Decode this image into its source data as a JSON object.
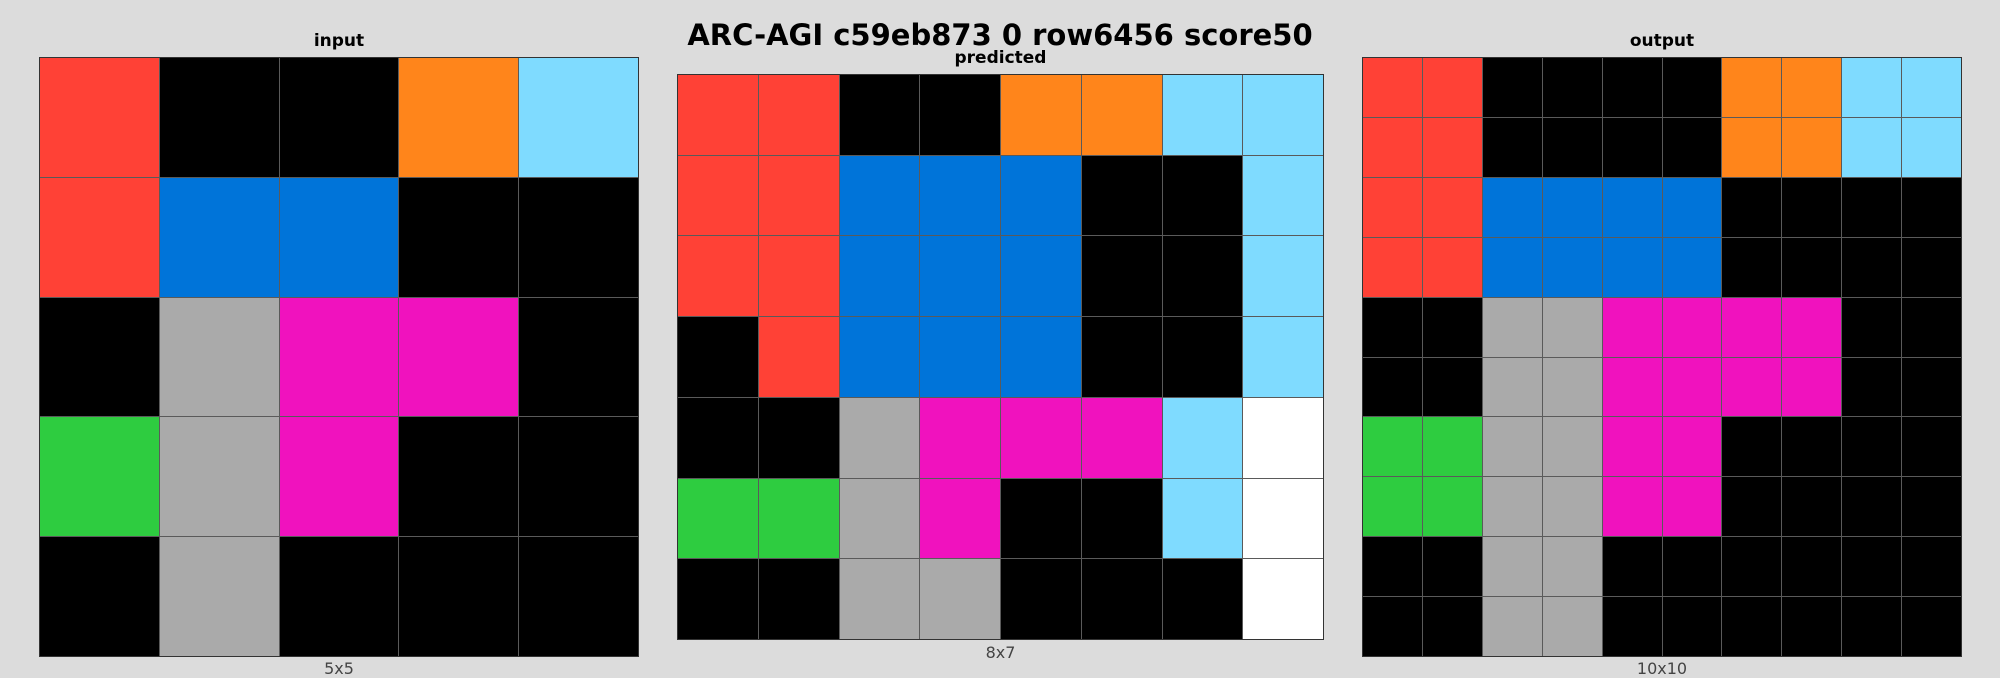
{
  "title": "ARC-AGI c59eb873 0 row6456 score50",
  "palette": {
    "0": "#000000",
    "1": "#0074D9",
    "2": "#FF4136",
    "3": "#2ECC40",
    "4": "#FFDC00",
    "5": "#AAAAAA",
    "6": "#F012BE",
    "7": "#FF851B",
    "8": "#7FDBFF",
    "9": "#FFFFFF"
  },
  "panels": {
    "input": {
      "label": "input",
      "size": "5x5",
      "grid": [
        [
          2,
          0,
          0,
          7,
          8
        ],
        [
          2,
          1,
          1,
          0,
          0
        ],
        [
          0,
          5,
          6,
          6,
          0
        ],
        [
          3,
          5,
          6,
          0,
          0
        ],
        [
          0,
          5,
          0,
          0,
          0
        ]
      ]
    },
    "predicted": {
      "label": "predicted",
      "size": "8x7",
      "grid": [
        [
          2,
          2,
          0,
          0,
          7,
          7,
          8,
          8
        ],
        [
          2,
          2,
          1,
          1,
          1,
          0,
          0,
          8
        ],
        [
          2,
          2,
          1,
          1,
          1,
          0,
          0,
          8
        ],
        [
          0,
          2,
          1,
          1,
          1,
          0,
          0,
          8
        ],
        [
          0,
          0,
          5,
          6,
          6,
          6,
          8,
          9
        ],
        [
          3,
          3,
          5,
          6,
          0,
          0,
          8,
          9
        ],
        [
          0,
          0,
          5,
          5,
          0,
          0,
          0,
          9
        ]
      ]
    },
    "output": {
      "label": "output",
      "size": "10x10",
      "grid": [
        [
          2,
          2,
          0,
          0,
          0,
          0,
          7,
          7,
          8,
          8
        ],
        [
          2,
          2,
          0,
          0,
          0,
          0,
          7,
          7,
          8,
          8
        ],
        [
          2,
          2,
          1,
          1,
          1,
          1,
          0,
          0,
          0,
          0
        ],
        [
          2,
          2,
          1,
          1,
          1,
          1,
          0,
          0,
          0,
          0
        ],
        [
          0,
          0,
          5,
          5,
          6,
          6,
          6,
          6,
          0,
          0
        ],
        [
          0,
          0,
          5,
          5,
          6,
          6,
          6,
          6,
          0,
          0
        ],
        [
          3,
          3,
          5,
          5,
          6,
          6,
          0,
          0,
          0,
          0
        ],
        [
          3,
          3,
          5,
          5,
          6,
          6,
          0,
          0,
          0,
          0
        ],
        [
          0,
          0,
          5,
          5,
          0,
          0,
          0,
          0,
          0,
          0
        ],
        [
          0,
          0,
          5,
          5,
          0,
          0,
          0,
          0,
          0,
          0
        ]
      ]
    }
  }
}
